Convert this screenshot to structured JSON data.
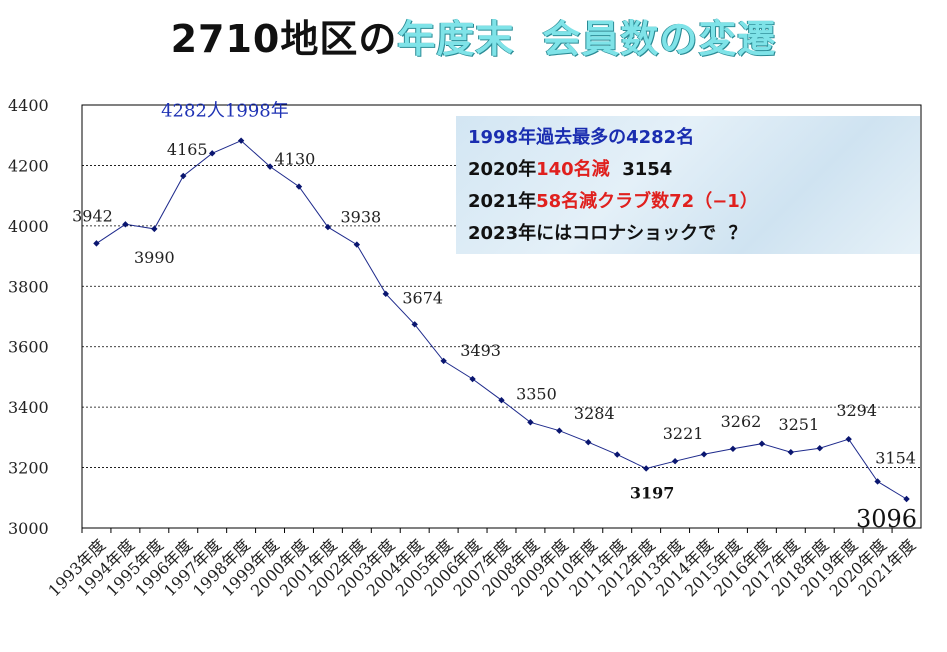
{
  "title": {
    "part1": "2710地区の",
    "part2": "年度末",
    "part3": "会員数の変遷"
  },
  "notes": {
    "line1": "1998年過去最多の4282名",
    "line2_prefix": "2020年",
    "line2_red": "140名減",
    "line2_suffix": "  3154",
    "line3_prefix": "2021年",
    "line3_red": "58名減クラブ数72（−1）",
    "line4": "2023年にはコロナショックで  ？"
  },
  "colors": {
    "line": "#1e2a8c",
    "marker": "#0a1670",
    "title_accent": "#7fe3e8",
    "note_highlight": "#e0201e",
    "note_blue": "#1a2db0"
  },
  "chart_data": {
    "type": "line",
    "title": "2710地区の年度末　会員数の変遷",
    "xlabel": "",
    "ylabel": "",
    "ylim": [
      3000,
      4400
    ],
    "yticks": [
      "3000",
      "3200",
      "3400",
      "3600",
      "3800",
      "4000",
      "4200",
      "4400"
    ],
    "grid": true,
    "categories": [
      "1993年度",
      "1994年度",
      "1995年度",
      "1996年度",
      "1997年度",
      "1998年度",
      "1999年度",
      "2000年度",
      "2001年度",
      "2002年度",
      "2003年度",
      "2004年度",
      "2005年度",
      "2006年度",
      "2007年度",
      "2008年度",
      "2009年度",
      "2010年度",
      "2011年度",
      "2012年度",
      "2013年度",
      "2014年度",
      "2015年度",
      "2016年度",
      "2017年度",
      "2018年度",
      "2019年度",
      "2020年度",
      "2021年度"
    ],
    "series": [
      {
        "values": [
          3942,
          4005,
          3990,
          4165,
          4240,
          4282,
          4196,
          4130,
          3996,
          3938,
          3775,
          3674,
          3553,
          3493,
          3423,
          3350,
          3322,
          3284,
          3243,
          3197,
          3221,
          3244,
          3262,
          3279,
          3251,
          3264,
          3294,
          3154,
          3096
        ]
      }
    ],
    "data_labels": [
      {
        "index": 0,
        "text": "3942"
      },
      {
        "index": 2,
        "text": "3990"
      },
      {
        "index": 3,
        "text": "4165"
      },
      {
        "index": 7,
        "text": "4130"
      },
      {
        "index": 9,
        "text": "3938"
      },
      {
        "index": 11,
        "text": "3674"
      },
      {
        "index": 13,
        "text": "3493"
      },
      {
        "index": 15,
        "text": "3350"
      },
      {
        "index": 17,
        "text": "3284"
      },
      {
        "index": 19,
        "text": "3197"
      },
      {
        "index": 20,
        "text": "3221"
      },
      {
        "index": 22,
        "text": "3262"
      },
      {
        "index": 24,
        "text": "3251"
      },
      {
        "index": 26,
        "text": "3294"
      },
      {
        "index": 27,
        "text": "3154"
      },
      {
        "index": 28,
        "text": "3096"
      }
    ],
    "annotations": [
      {
        "index": 5,
        "text": "4282人1998年"
      }
    ]
  }
}
